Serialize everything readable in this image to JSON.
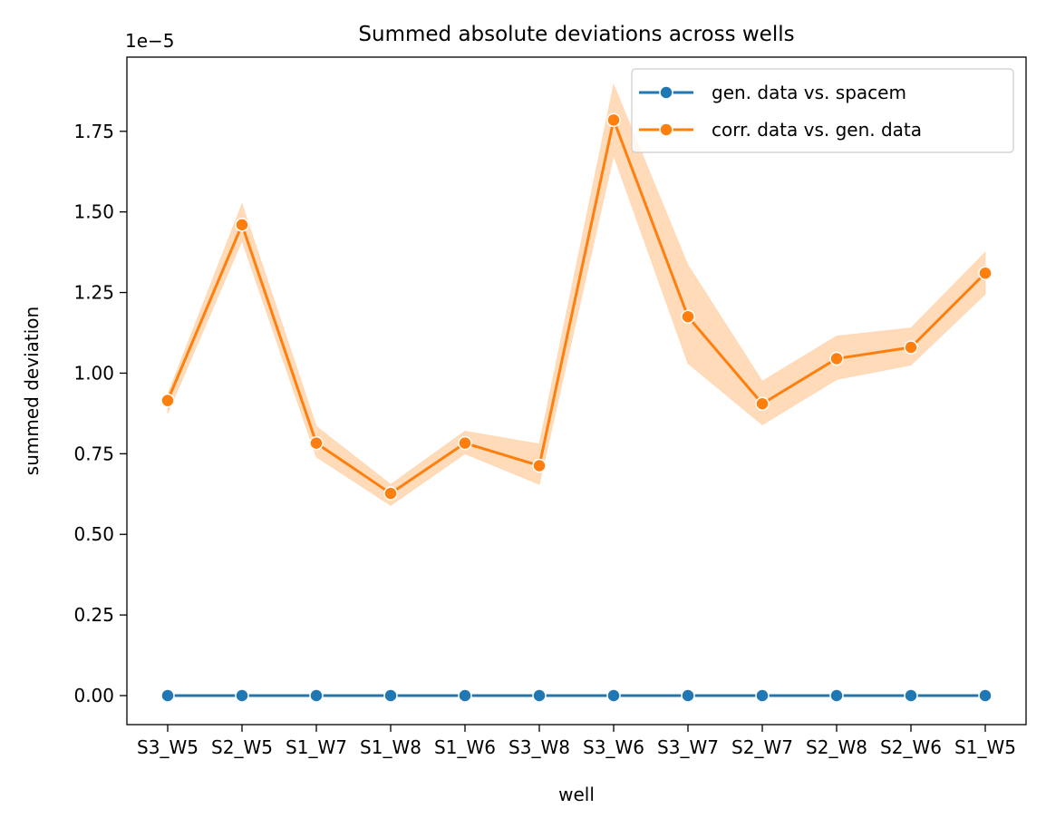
{
  "chart_data": {
    "type": "line",
    "title": "Summed absolute deviations across wells",
    "xlabel": "well",
    "ylabel": "summed deviation",
    "y_offset_label": "1e−5",
    "y_scale_factor": 1e-05,
    "categories": [
      "S3_W5",
      "S2_W5",
      "S1_W7",
      "S1_W8",
      "S1_W6",
      "S3_W8",
      "S3_W6",
      "S3_W7",
      "S2_W7",
      "S2_W8",
      "S2_W6",
      "S1_W5"
    ],
    "ylim": [
      -9e-07,
      1.98e-05
    ],
    "yticks": [
      0,
      2.5e-06,
      5e-06,
      7.5e-06,
      1e-05,
      1.25e-05,
      1.5e-05,
      1.75e-05
    ],
    "ytick_labels": [
      "0.00",
      "0.25",
      "0.50",
      "0.75",
      "1.00",
      "1.25",
      "1.50",
      "1.75"
    ],
    "grid": false,
    "legend_position": "top-right",
    "series": [
      {
        "name": "gen. data vs. spacem",
        "color": "#1f77b4",
        "values": [
          0,
          0,
          0,
          0,
          0,
          0,
          0,
          0,
          0,
          0,
          0,
          0
        ],
        "ci_lower": null,
        "ci_upper": null
      },
      {
        "name": "corr. data vs. gen. data",
        "color": "#ff7f0e",
        "band_color": "#ffcfa3",
        "values": [
          9.15e-06,
          1.46e-05,
          7.83e-06,
          6.27e-06,
          7.83e-06,
          7.13e-06,
          1.785e-05,
          1.175e-05,
          9.05e-06,
          1.045e-05,
          1.08e-05,
          1.31e-05
        ],
        "ci_lower": [
          8.75e-06,
          1.41e-05,
          7.4e-06,
          5.9e-06,
          7.5e-06,
          6.55e-06,
          1.675e-05,
          1.03e-05,
          8.4e-06,
          9.8e-06,
          1.025e-05,
          1.245e-05
        ],
        "ci_upper": [
          9.35e-06,
          1.525e-05,
          8.35e-06,
          6.55e-06,
          8.2e-06,
          7.8e-06,
          1.895e-05,
          1.335e-05,
          9.75e-06,
          1.115e-05,
          1.14e-05,
          1.375e-05
        ]
      }
    ]
  }
}
